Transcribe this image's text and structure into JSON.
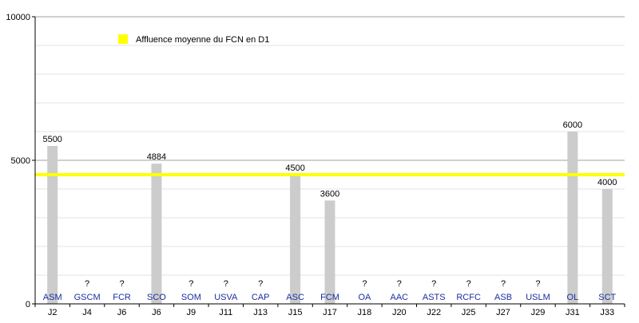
{
  "chart_data": {
    "type": "bar",
    "categories": [
      "J2",
      "J4",
      "J6",
      "J6",
      "J9",
      "J11",
      "J13",
      "J15",
      "J17",
      "J18",
      "J20",
      "J22",
      "J25",
      "J27",
      "J29",
      "J31",
      "J33"
    ],
    "teams": [
      "ASM",
      "GSCM",
      "FCR",
      "SCO",
      "SOM",
      "USVA",
      "CAP",
      "ASC",
      "FCM",
      "OA",
      "AAC",
      "ASTS",
      "RCFC",
      "ASB",
      "USLM",
      "OL",
      "SCT"
    ],
    "values": [
      5500,
      null,
      null,
      4884,
      null,
      null,
      null,
      4500,
      3600,
      null,
      null,
      null,
      null,
      null,
      null,
      6000,
      4000
    ],
    "value_labels": [
      "5500",
      "?",
      "?",
      "4884",
      "?",
      "?",
      "?",
      "4500",
      "3600",
      "?",
      "?",
      "?",
      "?",
      "?",
      "?",
      "6000",
      "4000"
    ],
    "average": 4500,
    "ylim": [
      0,
      10000
    ],
    "yticks": [
      0,
      5000,
      10000
    ],
    "ytick_labels": [
      "0",
      "5000",
      "10000"
    ],
    "minor_grid_step": 1000,
    "grid": true,
    "legend": {
      "placement": "top-left",
      "label": "Affluence moyenne du FCN en D1"
    },
    "colors": {
      "bar": "#cccccc",
      "average_line": "#ffff00",
      "team_label": "#1a2ea0",
      "grid": "#b0b0b0"
    }
  }
}
